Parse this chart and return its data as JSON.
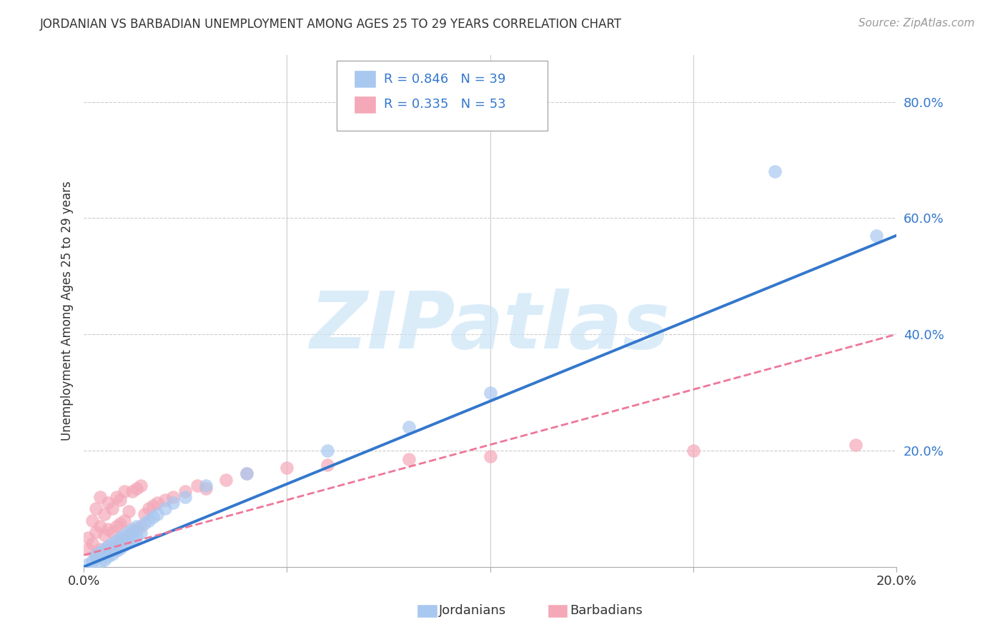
{
  "title": "JORDANIAN VS BARBADIAN UNEMPLOYMENT AMONG AGES 25 TO 29 YEARS CORRELATION CHART",
  "source": "Source: ZipAtlas.com",
  "ylabel": "Unemployment Among Ages 25 to 29 years",
  "xlim": [
    0.0,
    0.2
  ],
  "ylim": [
    0.0,
    0.88
  ],
  "xticks": [
    0.0,
    0.05,
    0.1,
    0.15,
    0.2
  ],
  "yticks": [
    0.0,
    0.2,
    0.4,
    0.6,
    0.8
  ],
  "jordan_R": 0.846,
  "jordan_N": 39,
  "barbados_R": 0.335,
  "barbados_N": 53,
  "jordan_color": "#a8c8f0",
  "barbados_color": "#f4a8b8",
  "jordan_line_color": "#3377cc",
  "barbados_line_color": "#ee7799",
  "watermark_color": "#cce4f7",
  "background_color": "#ffffff",
  "grid_color": "#cccccc",
  "legend_text_color": "#3377cc",
  "tick_label_color": "#3377cc",
  "jordan_scatter_x": [
    0.001,
    0.002,
    0.003,
    0.003,
    0.004,
    0.004,
    0.005,
    0.005,
    0.006,
    0.006,
    0.007,
    0.007,
    0.008,
    0.008,
    0.009,
    0.009,
    0.01,
    0.01,
    0.011,
    0.011,
    0.012,
    0.012,
    0.013,
    0.013,
    0.014,
    0.015,
    0.016,
    0.017,
    0.018,
    0.02,
    0.022,
    0.025,
    0.03,
    0.04,
    0.06,
    0.08,
    0.1,
    0.17,
    0.195
  ],
  "jordan_scatter_y": [
    0.005,
    0.01,
    0.015,
    0.02,
    0.008,
    0.025,
    0.012,
    0.03,
    0.018,
    0.035,
    0.022,
    0.04,
    0.028,
    0.045,
    0.032,
    0.05,
    0.038,
    0.055,
    0.042,
    0.06,
    0.048,
    0.065,
    0.052,
    0.07,
    0.058,
    0.075,
    0.08,
    0.085,
    0.09,
    0.1,
    0.11,
    0.12,
    0.14,
    0.16,
    0.2,
    0.24,
    0.3,
    0.68,
    0.57
  ],
  "barbados_scatter_x": [
    0.001,
    0.001,
    0.002,
    0.002,
    0.003,
    0.003,
    0.003,
    0.004,
    0.004,
    0.004,
    0.005,
    0.005,
    0.005,
    0.006,
    0.006,
    0.006,
    0.007,
    0.007,
    0.007,
    0.008,
    0.008,
    0.008,
    0.009,
    0.009,
    0.009,
    0.01,
    0.01,
    0.01,
    0.011,
    0.011,
    0.012,
    0.012,
    0.013,
    0.013,
    0.014,
    0.014,
    0.015,
    0.016,
    0.017,
    0.018,
    0.02,
    0.022,
    0.025,
    0.028,
    0.03,
    0.035,
    0.04,
    0.05,
    0.06,
    0.08,
    0.1,
    0.15,
    0.19
  ],
  "barbados_scatter_y": [
    0.03,
    0.05,
    0.04,
    0.08,
    0.02,
    0.06,
    0.1,
    0.03,
    0.07,
    0.12,
    0.025,
    0.055,
    0.09,
    0.035,
    0.065,
    0.11,
    0.03,
    0.06,
    0.1,
    0.04,
    0.07,
    0.12,
    0.045,
    0.075,
    0.115,
    0.05,
    0.08,
    0.13,
    0.055,
    0.095,
    0.06,
    0.13,
    0.065,
    0.135,
    0.07,
    0.14,
    0.09,
    0.1,
    0.105,
    0.11,
    0.115,
    0.12,
    0.13,
    0.14,
    0.135,
    0.15,
    0.16,
    0.17,
    0.175,
    0.185,
    0.19,
    0.2,
    0.21
  ],
  "jordan_line_x": [
    0.0,
    0.2
  ],
  "jordan_line_y": [
    0.0,
    0.57
  ],
  "barbados_line_x": [
    0.0,
    0.2
  ],
  "barbados_line_y": [
    0.02,
    0.4
  ]
}
